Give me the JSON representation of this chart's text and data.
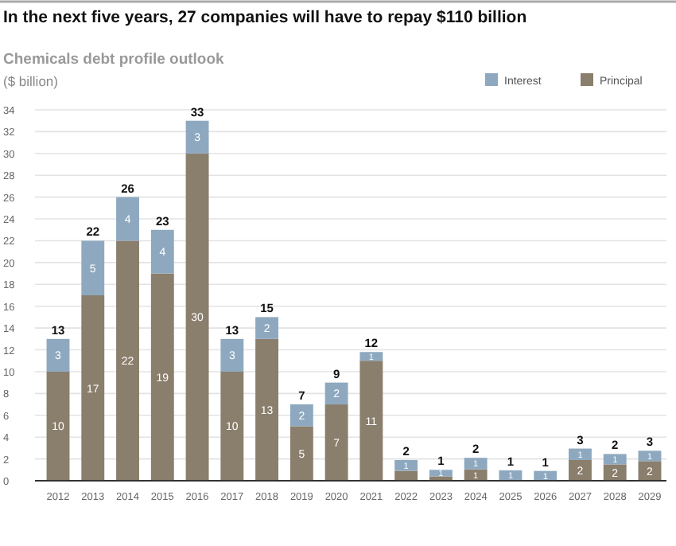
{
  "chart_data": {
    "type": "bar",
    "title": "In the next five years, 27 companies will have to repay $110 billion",
    "subtitle": "Chemicals debt profile outlook",
    "ylabel": "($ billion)",
    "categories": [
      "2012",
      "2013",
      "2014",
      "2015",
      "2016",
      "2017",
      "2018",
      "2019",
      "2020",
      "2021",
      "2022",
      "2023",
      "2024",
      "2025",
      "2026",
      "2027",
      "2028",
      "2029"
    ],
    "stacked": true,
    "legend": "top right",
    "grid": "y",
    "ylim": [
      0,
      34
    ],
    "yticks": [
      0,
      2,
      4,
      6,
      8,
      10,
      12,
      14,
      16,
      18,
      20,
      22,
      24,
      26,
      28,
      30,
      32,
      34
    ],
    "series": [
      {
        "name": "Principal",
        "color": "#8a7e6c",
        "values": [
          10,
          17,
          22,
          19,
          30,
          10,
          13,
          5,
          7,
          11,
          0.9,
          0.4,
          1.05,
          0,
          0,
          1.9,
          1.5,
          1.8
        ],
        "value_labels": [
          "10",
          "17",
          "22",
          "19",
          "30",
          "10",
          "13",
          "5",
          "7",
          "11",
          null,
          null,
          "1",
          null,
          null,
          "2",
          "2",
          "2"
        ]
      },
      {
        "name": "Interest",
        "color": "#8ea9bf",
        "values": [
          3,
          5,
          4,
          4,
          3,
          3,
          2,
          2,
          2,
          0.8,
          1,
          0.6,
          1.05,
          0.95,
          0.9,
          1.05,
          0.95,
          0.95
        ],
        "value_labels": [
          "3",
          "5",
          "4",
          "4",
          "3",
          "3",
          "2",
          "2",
          "2",
          "1",
          "1",
          "1",
          "1",
          "1",
          "1",
          "1",
          "1",
          "1"
        ]
      }
    ],
    "totals": [
      "13",
      "22",
      "26",
      "23",
      "33",
      "13",
      "15",
      "7",
      "9",
      "12",
      "2",
      "1",
      "2",
      "1",
      "1",
      "3",
      "2",
      "3"
    ]
  }
}
